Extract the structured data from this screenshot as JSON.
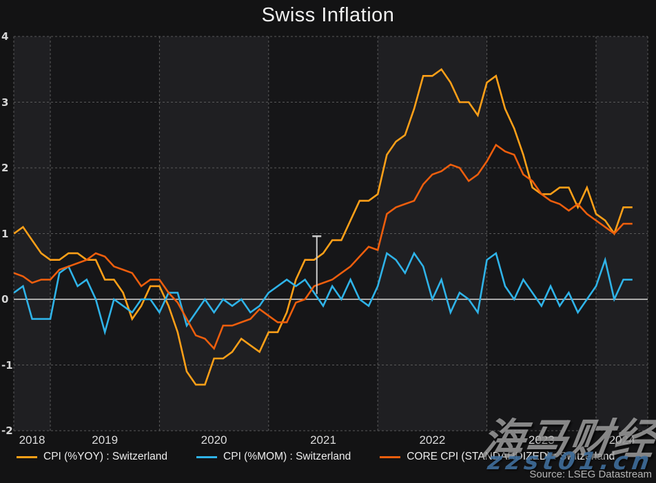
{
  "title": "Swiss Inflation",
  "source": "Source: LSEG Datastream",
  "watermark": {
    "cjk": "海马财经",
    "url": "zzst01.cn"
  },
  "colors": {
    "cpi_yoy": "#FFA018",
    "cpi_mom": "#2FB3E8",
    "core_cpi": "#ED5E0D",
    "zero_line": "#D8D8D8",
    "grid": "#5A5A5A",
    "band_light": "#1F1F22",
    "band_dark": "#161618",
    "background": "#131314",
    "marker": "#CCCCCC"
  },
  "legend": [
    {
      "id": "cpi_yoy",
      "label": "CPI (%YOY) : Switzerland"
    },
    {
      "id": "cpi_mom",
      "label": "CPI (%MOM) : Switzerland"
    },
    {
      "id": "core_cpi",
      "label": "CORE CPI (STANDARDIZED) : Switzerland"
    }
  ],
  "marker": {
    "x_month_index": 33.3,
    "y_from": 0.08,
    "y_to": 0.96
  },
  "chart_data": {
    "type": "line",
    "frequency": "monthly",
    "x_range": "2018-09 to 2024-05",
    "ylim": [
      -2,
      4
    ],
    "y_ticks": [
      4,
      3,
      2,
      1,
      0,
      -1,
      -2
    ],
    "x_tick_years": [
      "2018",
      "2019",
      "2020",
      "2021",
      "2022",
      "2023",
      "2024"
    ],
    "grid": "dashed",
    "legend_position": "bottom",
    "months": [
      "2018-09",
      "2018-10",
      "2018-11",
      "2018-12",
      "2019-01",
      "2019-02",
      "2019-03",
      "2019-04",
      "2019-05",
      "2019-06",
      "2019-07",
      "2019-08",
      "2019-09",
      "2019-10",
      "2019-11",
      "2019-12",
      "2020-01",
      "2020-02",
      "2020-03",
      "2020-04",
      "2020-05",
      "2020-06",
      "2020-07",
      "2020-08",
      "2020-09",
      "2020-10",
      "2020-11",
      "2020-12",
      "2021-01",
      "2021-02",
      "2021-03",
      "2021-04",
      "2021-05",
      "2021-06",
      "2021-07",
      "2021-08",
      "2021-09",
      "2021-10",
      "2021-11",
      "2021-12",
      "2022-01",
      "2022-02",
      "2022-03",
      "2022-04",
      "2022-05",
      "2022-06",
      "2022-07",
      "2022-08",
      "2022-09",
      "2022-10",
      "2022-11",
      "2022-12",
      "2023-01",
      "2023-02",
      "2023-03",
      "2023-04",
      "2023-05",
      "2023-06",
      "2023-07",
      "2023-08",
      "2023-09",
      "2023-10",
      "2023-11",
      "2023-12",
      "2024-01",
      "2024-02",
      "2024-03",
      "2024-04",
      "2024-05"
    ],
    "series": [
      {
        "id": "cpi_yoy",
        "name": "CPI (%YOY) : Switzerland",
        "values": [
          1.0,
          1.1,
          0.9,
          0.7,
          0.6,
          0.6,
          0.7,
          0.7,
          0.6,
          0.6,
          0.3,
          0.3,
          0.1,
          -0.3,
          -0.1,
          0.2,
          0.2,
          -0.1,
          -0.5,
          -1.1,
          -1.3,
          -1.3,
          -0.9,
          -0.9,
          -0.8,
          -0.6,
          -0.7,
          -0.8,
          -0.5,
          -0.5,
          -0.2,
          0.3,
          0.6,
          0.6,
          0.7,
          0.9,
          0.9,
          1.2,
          1.5,
          1.5,
          1.6,
          2.2,
          2.4,
          2.5,
          2.9,
          3.4,
          3.4,
          3.5,
          3.3,
          3.0,
          3.0,
          2.8,
          3.3,
          3.4,
          2.9,
          2.6,
          2.2,
          1.7,
          1.6,
          1.6,
          1.7,
          1.7,
          1.4,
          1.7,
          1.3,
          1.2,
          1.0,
          1.4,
          1.4
        ]
      },
      {
        "id": "cpi_mom",
        "name": "CPI (%MOM) : Switzerland",
        "values": [
          0.1,
          0.2,
          -0.3,
          -0.3,
          -0.3,
          0.4,
          0.5,
          0.2,
          0.3,
          0.0,
          -0.5,
          0.0,
          -0.1,
          -0.2,
          0.0,
          0.0,
          -0.2,
          0.1,
          0.1,
          -0.4,
          -0.2,
          0.0,
          -0.2,
          0.0,
          -0.1,
          0.0,
          -0.2,
          -0.1,
          0.1,
          0.2,
          0.3,
          0.2,
          0.3,
          0.1,
          -0.1,
          0.2,
          0.0,
          0.3,
          0.0,
          -0.1,
          0.2,
          0.7,
          0.6,
          0.4,
          0.7,
          0.5,
          0.0,
          0.3,
          -0.2,
          0.1,
          0.0,
          -0.2,
          0.6,
          0.7,
          0.2,
          0.0,
          0.3,
          0.1,
          -0.1,
          0.2,
          -0.1,
          0.1,
          -0.2,
          0.0,
          0.2,
          0.6,
          0.0,
          0.3,
          0.3
        ]
      },
      {
        "id": "core_cpi",
        "name": "CORE CPI (STANDARDIZED) : Switzerland",
        "values": [
          0.4,
          0.35,
          0.25,
          0.3,
          0.3,
          0.45,
          0.5,
          0.55,
          0.6,
          0.7,
          0.65,
          0.5,
          0.45,
          0.4,
          0.2,
          0.3,
          0.3,
          0.1,
          -0.05,
          -0.3,
          -0.55,
          -0.6,
          -0.75,
          -0.4,
          -0.4,
          -0.35,
          -0.3,
          -0.15,
          -0.25,
          -0.35,
          -0.35,
          -0.05,
          0.0,
          0.2,
          0.25,
          0.3,
          0.4,
          0.5,
          0.65,
          0.8,
          0.75,
          1.3,
          1.4,
          1.45,
          1.5,
          1.75,
          1.9,
          1.95,
          2.05,
          2.0,
          1.8,
          1.9,
          2.1,
          2.35,
          2.25,
          2.2,
          1.9,
          1.8,
          1.6,
          1.5,
          1.45,
          1.35,
          1.45,
          1.3,
          1.2,
          1.1,
          1.0,
          1.15,
          1.15
        ]
      }
    ]
  }
}
